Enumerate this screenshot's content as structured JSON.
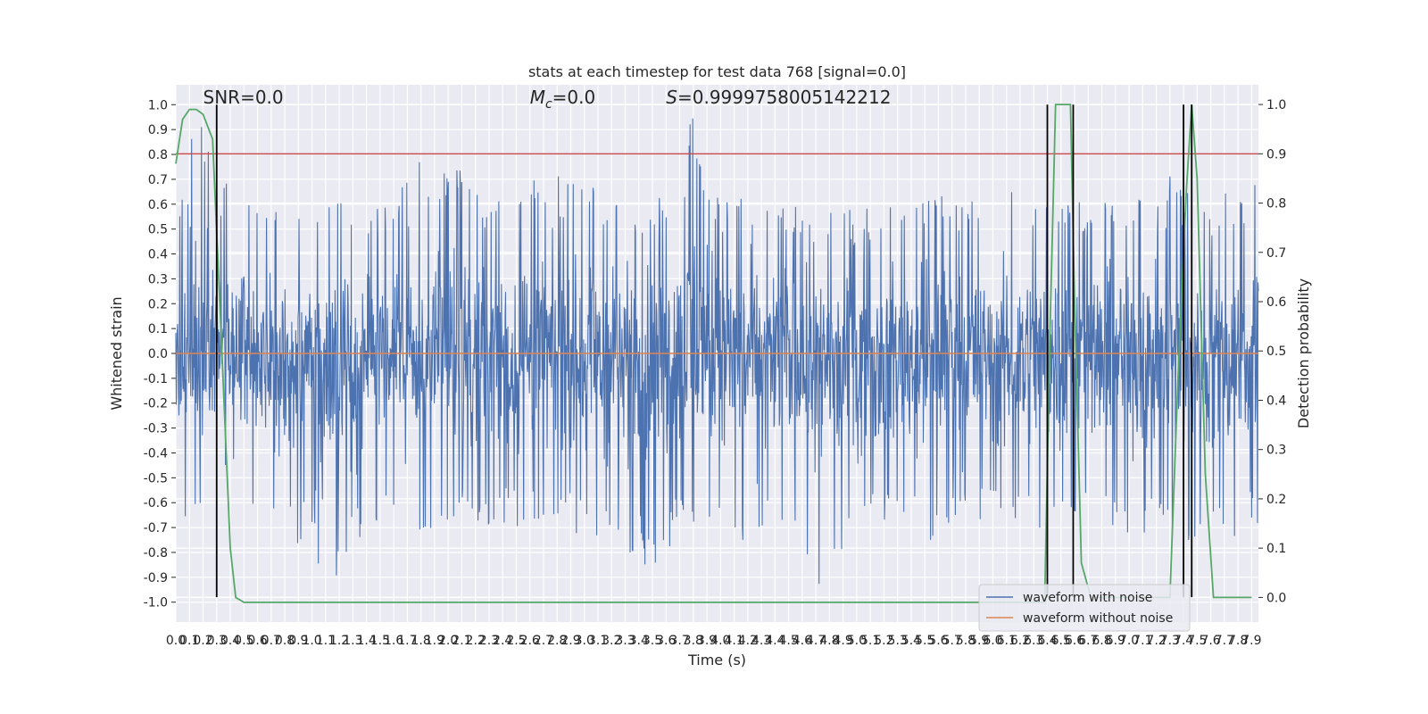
{
  "chart_data": {
    "type": "line",
    "title": "stats at each timestep for test data 768 [signal=0.0]",
    "xlabel": "Time (s)",
    "ylabel": "Whitened strain",
    "y2label": "Detection probability",
    "xlim": [
      0.0,
      7.95
    ],
    "ylim": [
      -1.08,
      1.08
    ],
    "y2lim": [
      -0.05,
      1.04
    ],
    "x_ticks": [
      0.0,
      0.1,
      0.2,
      0.3,
      0.4,
      0.5,
      0.6,
      0.7,
      0.8,
      0.9,
      1.0,
      1.1,
      1.2,
      1.3,
      1.4,
      1.5,
      1.6,
      1.7,
      1.8,
      1.9,
      2.0,
      2.1,
      2.2,
      2.3,
      2.4,
      2.5,
      2.6,
      2.7,
      2.8,
      2.9,
      3.0,
      3.1,
      3.2,
      3.3,
      3.4,
      3.5,
      3.6,
      3.7,
      3.8,
      3.9,
      4.0,
      4.1,
      4.2,
      4.3,
      4.4,
      4.5,
      4.6,
      4.7,
      4.8,
      4.9,
      5.0,
      5.1,
      5.2,
      5.3,
      5.4,
      5.5,
      5.6,
      5.7,
      5.8,
      5.9,
      6.0,
      6.1,
      6.2,
      6.3,
      6.4,
      6.5,
      6.6,
      6.7,
      6.8,
      6.9,
      7.0,
      7.1,
      7.2,
      7.3,
      7.4,
      7.5,
      7.6,
      7.7,
      7.8,
      7.9
    ],
    "x_tick_labels": [
      "0.0",
      "0.1",
      "0.2",
      "0.3",
      "0.4",
      "0.5",
      "0.6",
      "0.7",
      "0.8",
      "0.9",
      "1.0",
      "1.1",
      "1.2",
      "1.3",
      "1.4",
      "1.5",
      "1.6",
      "1.7",
      "1.8",
      "1.9",
      "2.0",
      "2.1",
      "2.2",
      "2.3",
      "2.4",
      "2.5",
      "2.6",
      "2.7",
      "2.8",
      "2.9",
      "3.0",
      "3.1",
      "3.2",
      "3.3",
      "3.4",
      "3.5",
      "3.6",
      "3.7",
      "3.8",
      "3.9",
      "4.0",
      "4.1",
      "4.2",
      "4.3",
      "4.4",
      "4.5",
      "4.6",
      "4.7",
      "4.8",
      "4.9",
      "5.0",
      "5.1",
      "5.2",
      "5.3",
      "5.4",
      "5.5",
      "5.6",
      "5.7",
      "5.8",
      "5.9",
      "6.0",
      "6.1",
      "6.2",
      "6.3",
      "6.4",
      "6.5",
      "6.6",
      "6.7",
      "6.8",
      "6.9",
      "7.0",
      "7.1",
      "7.2",
      "7.3",
      "7.4",
      "7.5",
      "7.6",
      "7.7",
      "7.8",
      "7.9"
    ],
    "y_ticks": [
      1.0,
      0.9,
      0.8,
      0.7,
      0.6,
      0.5,
      0.4,
      0.3,
      0.2,
      0.1,
      0.0,
      -0.1,
      -0.2,
      -0.3,
      -0.4,
      -0.5,
      -0.6,
      -0.7,
      -0.8,
      -0.9,
      -1.0
    ],
    "y_tick_labels": [
      "1.0",
      "0.9",
      "0.8",
      "0.7",
      "0.6",
      "0.5",
      "0.4",
      "0.3",
      "0.2",
      "0.1",
      "0.0",
      "-0.1",
      "-0.2",
      "-0.3",
      "-0.4",
      "-0.5",
      "-0.6",
      "-0.7",
      "-0.8",
      "-0.9",
      "-1.0"
    ],
    "y2_ticks": [
      1.0,
      0.9,
      0.8,
      0.7,
      0.6,
      0.5,
      0.4,
      0.3,
      0.2,
      0.1,
      0.0
    ],
    "y2_tick_labels": [
      "1.0",
      "0.9",
      "0.8",
      "0.7",
      "0.6",
      "0.5",
      "0.4",
      "0.3",
      "0.2",
      "0.1",
      "0.0"
    ],
    "grid": true,
    "annotations": [
      {
        "text": "SNR=0.0",
        "x": 0.2,
        "y": 1.03
      },
      {
        "text": "M",
        "sub": "c",
        "suffix": "=0.0",
        "x": 2.6,
        "y": 1.03
      },
      {
        "text": "S",
        "suffix": "=0.9999758005142212",
        "x": 3.6,
        "y": 1.03
      }
    ],
    "noise_series": {
      "name": "waveform with noise",
      "color": "#4c72b0",
      "approx_upper_envelope": [
        [
          0.0,
          0.4
        ],
        [
          0.1,
          0.95
        ],
        [
          0.2,
          0.98
        ],
        [
          0.3,
          0.72
        ],
        [
          0.5,
          0.65
        ],
        [
          0.8,
          0.55
        ],
        [
          1.0,
          0.6
        ],
        [
          1.2,
          0.62
        ],
        [
          1.5,
          0.6
        ],
        [
          1.75,
          0.83
        ],
        [
          1.9,
          0.72
        ],
        [
          2.05,
          0.85
        ],
        [
          2.3,
          0.63
        ],
        [
          2.4,
          0.62
        ],
        [
          2.6,
          0.78
        ],
        [
          2.8,
          0.72
        ],
        [
          3.0,
          0.7
        ],
        [
          3.2,
          0.64
        ],
        [
          3.45,
          0.62
        ],
        [
          3.7,
          0.7
        ],
        [
          3.78,
          0.98
        ],
        [
          4.0,
          0.64
        ],
        [
          4.5,
          0.6
        ],
        [
          4.8,
          0.58
        ],
        [
          5.0,
          0.58
        ],
        [
          5.3,
          0.6
        ],
        [
          5.6,
          0.65
        ],
        [
          5.9,
          0.62
        ],
        [
          6.2,
          0.7
        ],
        [
          6.5,
          0.62
        ],
        [
          6.8,
          0.6
        ],
        [
          7.0,
          0.65
        ],
        [
          7.3,
          0.74
        ],
        [
          7.5,
          0.6
        ],
        [
          7.9,
          0.7
        ]
      ],
      "approx_lower_envelope": [
        [
          0.0,
          -0.62
        ],
        [
          0.1,
          -0.68
        ],
        [
          0.3,
          -0.52
        ],
        [
          0.5,
          -0.55
        ],
        [
          0.8,
          -0.82
        ],
        [
          1.0,
          -0.72
        ],
        [
          1.05,
          -0.92
        ],
        [
          1.2,
          -0.89
        ],
        [
          1.5,
          -0.72
        ],
        [
          1.7,
          -0.77
        ],
        [
          2.0,
          -0.68
        ],
        [
          2.3,
          -0.69
        ],
        [
          2.6,
          -0.7
        ],
        [
          2.8,
          -0.66
        ],
        [
          3.0,
          -0.75
        ],
        [
          3.5,
          -0.88
        ],
        [
          3.8,
          -0.7
        ],
        [
          4.2,
          -0.78
        ],
        [
          4.5,
          -0.7
        ],
        [
          4.7,
          -0.98
        ],
        [
          4.9,
          -0.8
        ],
        [
          5.2,
          -0.72
        ],
        [
          5.5,
          -0.78
        ],
        [
          5.9,
          -0.72
        ],
        [
          6.2,
          -0.75
        ],
        [
          6.5,
          -0.7
        ],
        [
          6.8,
          -0.68
        ],
        [
          7.1,
          -0.8
        ],
        [
          7.3,
          -0.73
        ],
        [
          7.6,
          -0.85
        ],
        [
          7.9,
          -0.74
        ]
      ]
    },
    "clean_series": {
      "name": "waveform without noise",
      "color": "#dd8452",
      "value": 0.0
    },
    "threshold_line": {
      "y2": 0.9,
      "color": "#c44e52"
    },
    "detection_series": {
      "name": "",
      "color": "#55a868",
      "points": [
        [
          0.0,
          0.88
        ],
        [
          0.05,
          0.97
        ],
        [
          0.1,
          0.99
        ],
        [
          0.15,
          0.99
        ],
        [
          0.2,
          0.98
        ],
        [
          0.27,
          0.93
        ],
        [
          0.33,
          0.55
        ],
        [
          0.4,
          0.1
        ],
        [
          0.44,
          0.0
        ],
        [
          0.5,
          -0.01
        ],
        [
          6.38,
          -0.01
        ],
        [
          6.42,
          0.55
        ],
        [
          6.46,
          1.0
        ],
        [
          6.57,
          1.0
        ],
        [
          6.6,
          0.6
        ],
        [
          6.65,
          0.07
        ],
        [
          6.72,
          0.0
        ],
        [
          7.3,
          0.0
        ],
        [
          7.36,
          0.45
        ],
        [
          7.42,
          0.82
        ],
        [
          7.46,
          1.0
        ],
        [
          7.5,
          0.85
        ],
        [
          7.56,
          0.25
        ],
        [
          7.62,
          0.0
        ],
        [
          7.9,
          0.0
        ]
      ]
    },
    "event_markers": {
      "color": "#000000",
      "x": [
        0.3,
        6.4,
        6.59,
        7.4,
        7.46
      ],
      "y_range": [
        -0.98,
        1.0
      ]
    },
    "legend": {
      "placement": "bottom-right",
      "entries": [
        {
          "label": "waveform with noise",
          "color": "#4c72b0"
        },
        {
          "label": "waveform without noise",
          "color": "#dd8452"
        }
      ]
    }
  }
}
